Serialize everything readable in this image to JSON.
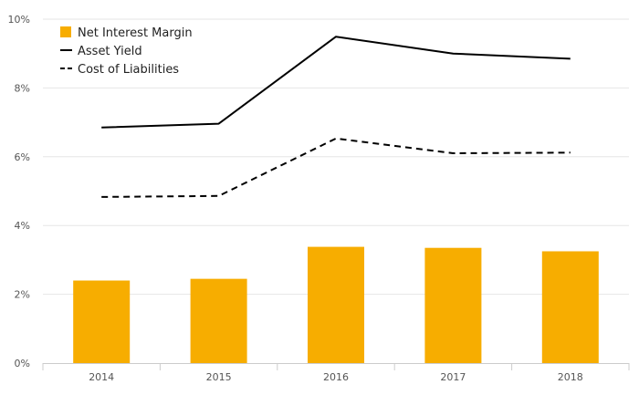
{
  "chart_data": {
    "type": "bar",
    "categories": [
      "2014",
      "2015",
      "2016",
      "2017",
      "2018"
    ],
    "series": [
      {
        "name": "Net Interest Margin",
        "kind": "bar",
        "values": [
          2.4,
          2.45,
          3.38,
          3.35,
          3.25
        ],
        "color": "#f7ad00"
      },
      {
        "name": "Asset Yield",
        "kind": "line",
        "style": "solid",
        "values": [
          6.85,
          6.96,
          9.49,
          9.0,
          8.85
        ],
        "color": "#000000"
      },
      {
        "name": "Cost of Liabilities",
        "kind": "line",
        "style": "dashed",
        "values": [
          4.83,
          4.86,
          6.53,
          6.1,
          6.12
        ],
        "color": "#000000"
      }
    ],
    "y_ticks": [
      "0%",
      "2%",
      "4%",
      "6%",
      "8%",
      "10%"
    ],
    "ylim": [
      0,
      10
    ],
    "title": "",
    "xlabel": "",
    "ylabel": "",
    "grid": true,
    "legend": "top-left",
    "colors": {
      "grid": "#e6e6e6",
      "axis": "#cccccc",
      "text": "#555555"
    }
  }
}
